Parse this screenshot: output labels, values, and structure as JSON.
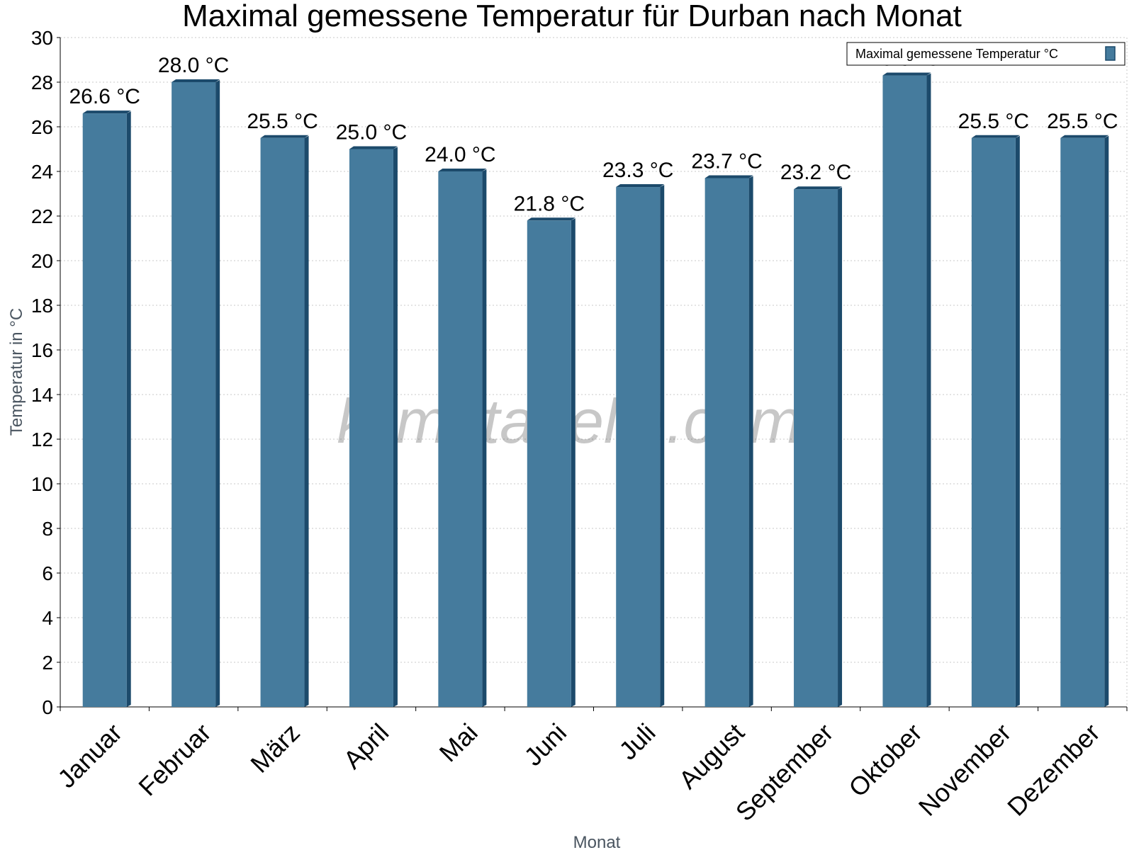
{
  "chart_data": {
    "type": "bar",
    "title": "Maximal gemessene Temperatur für Durban nach Monat",
    "xlabel": "Monat",
    "ylabel": "Temperatur in °C",
    "ylim": [
      0,
      30
    ],
    "yticks": [
      0,
      2,
      4,
      6,
      8,
      10,
      12,
      14,
      16,
      18,
      20,
      22,
      24,
      26,
      28,
      30
    ],
    "grid": true,
    "legend_position": "top-right",
    "categories": [
      "Januar",
      "Februar",
      "März",
      "April",
      "Mai",
      "Juni",
      "Juli",
      "August",
      "September",
      "Oktober",
      "November",
      "Dezember"
    ],
    "series": [
      {
        "name": "Maximal gemessene Temperatur °C",
        "values": [
          26.6,
          28.0,
          25.5,
          25.0,
          24.0,
          21.8,
          23.3,
          23.7,
          23.2,
          28.3,
          25.5,
          25.5
        ],
        "labels": [
          "26.6 °C",
          "28.0 °C",
          "25.5 °C",
          "25.0 °C",
          "24.0 °C",
          "21.8 °C",
          "23.3 °C",
          "23.7 °C",
          "23.2 °C",
          "28.3 °C",
          "25.5 °C",
          "25.5 °C"
        ],
        "color": "#457b9d",
        "edge_color": "#1c4a6b"
      }
    ],
    "watermark": "klimatabelle.com"
  }
}
